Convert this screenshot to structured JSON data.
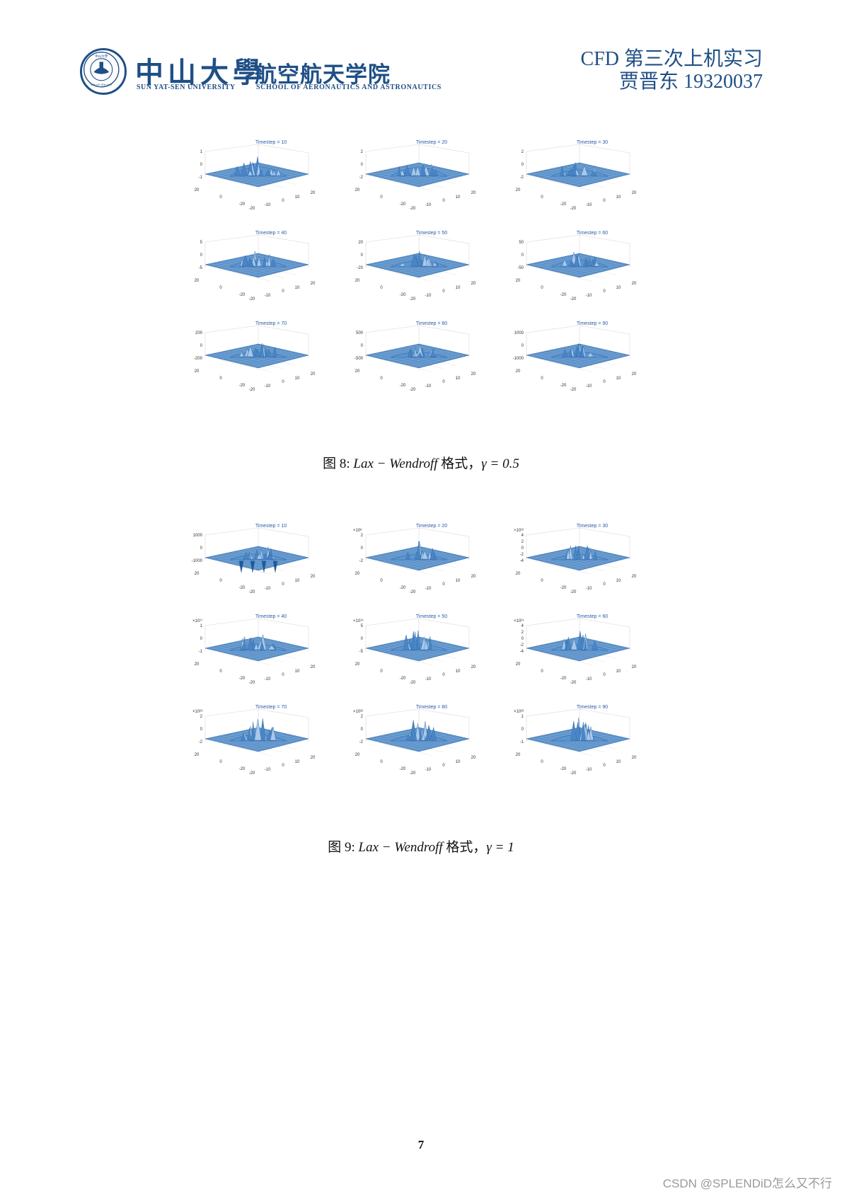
{
  "header": {
    "university_cn": "中山大學",
    "school_cn": "航空航天学院",
    "university_en": "SUN YAT-SEN UNIVERSITY",
    "school_en": "SCHOOL OF AERONAUTICS AND ASTRONAUTICS",
    "title": "CFD 第三次上机实习",
    "author_line": "贾晋东 19320037",
    "seal_text": "中山大學 SUN YAT-SEN UNIVERSITY",
    "brand_color": "#1f4f86"
  },
  "figure8": {
    "caption_prefix": "图 8: ",
    "caption_method": "Lax − Wendroff",
    "caption_suffix": " 格式，",
    "caption_gamma": "γ = 0.5",
    "panels": [
      {
        "title": "Timestep = 10",
        "z_ticks": [
          "1",
          "0",
          "-1"
        ],
        "exponent": "",
        "peak": 0.7,
        "spiky": 0.3
      },
      {
        "title": "Timestep = 20",
        "z_ticks": [
          "2",
          "0",
          "-2"
        ],
        "exponent": "",
        "peak": 0.65,
        "spiky": 0.35
      },
      {
        "title": "Timestep = 30",
        "z_ticks": [
          "2",
          "0",
          "-2"
        ],
        "exponent": "",
        "peak": 0.55,
        "spiky": 0.6
      },
      {
        "title": "Timestep = 40",
        "z_ticks": [
          "5",
          "0",
          "-5"
        ],
        "exponent": "",
        "peak": 0.6,
        "spiky": 0.6
      },
      {
        "title": "Timestep = 50",
        "z_ticks": [
          "20",
          "0",
          "-20"
        ],
        "exponent": "",
        "peak": 0.55,
        "spiky": 0.7
      },
      {
        "title": "Timestep = 60",
        "z_ticks": [
          "50",
          "0",
          "-50"
        ],
        "exponent": "",
        "peak": 0.6,
        "spiky": 0.6
      },
      {
        "title": "Timestep = 70",
        "z_ticks": [
          "200",
          "0",
          "-200"
        ],
        "exponent": "",
        "peak": 0.55,
        "spiky": 0.8
      },
      {
        "title": "Timestep = 80",
        "z_ticks": [
          "500",
          "0",
          "-500"
        ],
        "exponent": "",
        "peak": 0.5,
        "spiky": 0.8
      },
      {
        "title": "Timestep = 90",
        "z_ticks": [
          "1000",
          "0",
          "-1000"
        ],
        "exponent": "",
        "peak": 0.5,
        "spiky": 0.8
      }
    ]
  },
  "figure9": {
    "caption_prefix": "图 9: ",
    "caption_method": "Lax − Wendroff",
    "caption_suffix": " 格式，",
    "caption_gamma": "γ = 1",
    "panels": [
      {
        "title": "Timestep = 10",
        "z_ticks": [
          "1000",
          "0",
          "-1000"
        ],
        "exponent": "",
        "peak": 0.6,
        "spiky": 0.9
      },
      {
        "title": "Timestep = 20",
        "z_ticks": [
          "2",
          "0",
          "-2"
        ],
        "exponent": "×10⁸",
        "peak": 0.65,
        "spiky": 0.95
      },
      {
        "title": "Timestep = 30",
        "z_ticks": [
          "4",
          "2",
          "0",
          "-2",
          "-4"
        ],
        "exponent": "×10¹²",
        "peak": 0.6,
        "spiky": 0.9
      },
      {
        "title": "Timestep = 40",
        "z_ticks": [
          "1",
          "0",
          "-1"
        ],
        "exponent": "×10¹⁷",
        "peak": 0.7,
        "spiky": 0.9
      },
      {
        "title": "Timestep = 50",
        "z_ticks": [
          "5",
          "0",
          "-5"
        ],
        "exponent": "×10¹⁹",
        "peak": 0.75,
        "spiky": 0.9
      },
      {
        "title": "Timestep = 60",
        "z_ticks": [
          "4",
          "2",
          "0",
          "-2",
          "-4"
        ],
        "exponent": "×10²⁴",
        "peak": 0.75,
        "spiky": 0.9
      },
      {
        "title": "Timestep = 70",
        "z_ticks": [
          "2",
          "0",
          "-2"
        ],
        "exponent": "×10²⁸",
        "peak": 0.9,
        "spiky": 1
      },
      {
        "title": "Timestep = 80",
        "z_ticks": [
          "2",
          "0",
          "-2"
        ],
        "exponent": "×10³²",
        "peak": 0.85,
        "spiky": 1
      },
      {
        "title": "Timestep = 90",
        "z_ticks": [
          "1",
          "0",
          "-1"
        ],
        "exponent": "×10³⁶",
        "peak": 0.85,
        "spiky": 1
      }
    ]
  },
  "axis_ticks": {
    "y_left": [
      "20",
      "0",
      "-20"
    ],
    "x_right": [
      "-20",
      "-10",
      "0",
      "10",
      "20"
    ]
  },
  "page_number": "7",
  "watermark": "CSDN @SPLENDiD怎么又不行",
  "surface_color": "#3f7fc1"
}
